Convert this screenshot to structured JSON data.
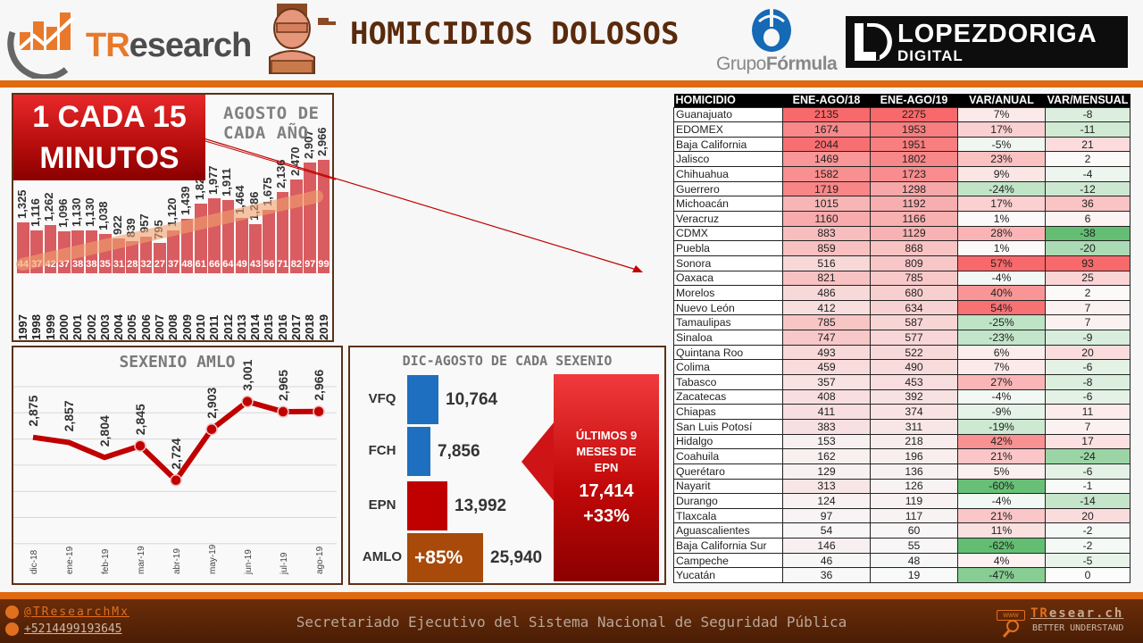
{
  "header": {
    "title": "HOMICIDIOS DOLOSOS",
    "logo_tresearch": {
      "t": "TR",
      "rest": "esearch"
    },
    "logo_grupoformula": {
      "pre": "Grupo",
      "bold": "Fórmula"
    },
    "logo_lopezdoriga": {
      "line1": "LOPEZDORIGA",
      "line2": "DIGITAL"
    }
  },
  "annual_panel": {
    "badge_line1": "1 CADA 15",
    "badge_line2": "MINUTOS",
    "title": "AGOSTO DE CADA AÑO"
  },
  "amlo_panel": {
    "title": "SEXENIO AMLO"
  },
  "sexenio_panel": {
    "title": "DIC-AGOSTO DE CADA SEXENIO",
    "callout": {
      "line1": "ÚLTIMOS 9",
      "line2": "MESES DE",
      "line3": "EPN",
      "value": "17,414",
      "pct": "+33%"
    },
    "amlo_pct": "+85%"
  },
  "chart_data": [
    {
      "type": "bar",
      "title": "AGOSTO DE CADA AÑO",
      "annotation": "1 CADA 15 MINUTOS",
      "categories": [
        "1997",
        "1998",
        "1999",
        "2000",
        "2001",
        "2002",
        "2003",
        "2004",
        "2005",
        "2006",
        "2007",
        "2008",
        "2009",
        "2010",
        "2011",
        "2012",
        "2013",
        "2014",
        "2015",
        "2016",
        "2017",
        "2018",
        "2019"
      ],
      "series": [
        {
          "name": "Homicidios (agosto)",
          "values": [
            1325,
            1116,
            1262,
            1096,
            1130,
            1130,
            1038,
            922,
            839,
            957,
            795,
            1120,
            1439,
            1822,
            1977,
            1911,
            1464,
            1286,
            1675,
            2136,
            2470,
            2907,
            2966
          ],
          "labels": [
            "1,325",
            "1,116",
            "1,262",
            "1,096",
            "1,130",
            "1,130",
            "1,038",
            "922",
            "839",
            "957",
            "795",
            "1,120",
            "1,439",
            "1,822",
            "1,977",
            "1,911",
            "1,464",
            "1,286",
            "1,675",
            "2,136",
            "2,470",
            "2,907",
            "2,966"
          ]
        },
        {
          "name": "Diario",
          "values": [
            44,
            37,
            42,
            37,
            38,
            38,
            35,
            31,
            28,
            32,
            27,
            37,
            48,
            61,
            66,
            64,
            49,
            43,
            56,
            71,
            82,
            97,
            99
          ]
        }
      ],
      "trendline": true
    },
    {
      "type": "line",
      "title": "SEXENIO AMLO",
      "categories": [
        "dic-18",
        "ene-19",
        "feb-19",
        "mar-19",
        "abr-19",
        "may-19",
        "jun-19",
        "jul-19",
        "ago-19"
      ],
      "values": [
        2875,
        2857,
        2804,
        2845,
        2724,
        2903,
        3001,
        2965,
        2966
      ],
      "labels": [
        "2,875",
        "2,857",
        "2,804",
        "2,845",
        "2,724",
        "2,903",
        "3,001",
        "2,965",
        "2,966"
      ],
      "grid": true
    },
    {
      "type": "bar",
      "orientation": "horizontal",
      "title": "DIC-AGOSTO DE CADA SEXENIO",
      "categories": [
        "VFQ",
        "FCH",
        "EPN",
        "AMLO"
      ],
      "values": [
        10764,
        7856,
        13992,
        25940
      ],
      "labels": [
        "10,764",
        "7,856",
        "13,992",
        "25,940"
      ],
      "colors": [
        "#1f6fc0",
        "#1f6fc0",
        "#c00000",
        "#a84a0a"
      ]
    },
    {
      "type": "table",
      "columns": [
        "HOMICIDIO",
        "ENE-AGO/18",
        "ENE-AGO/19",
        "VAR/ANUAL",
        "VAR/MENSUAL"
      ],
      "rows": [
        [
          "Guanajuato",
          "2135",
          "2275",
          "7%",
          "-8"
        ],
        [
          "EDOMEX",
          "1674",
          "1953",
          "17%",
          "-11"
        ],
        [
          "Baja California",
          "2044",
          "1951",
          "-5%",
          "21"
        ],
        [
          "Jalisco",
          "1469",
          "1802",
          "23%",
          "2"
        ],
        [
          "Chihuahua",
          "1582",
          "1723",
          "9%",
          "-4"
        ],
        [
          "Guerrero",
          "1719",
          "1298",
          "-24%",
          "-12"
        ],
        [
          "Michoacán",
          "1015",
          "1192",
          "17%",
          "36"
        ],
        [
          "Veracruz",
          "1160",
          "1166",
          "1%",
          "6"
        ],
        [
          "CDMX",
          "883",
          "1129",
          "28%",
          "-38"
        ],
        [
          "Puebla",
          "859",
          "868",
          "1%",
          "-20"
        ],
        [
          "Sonora",
          "516",
          "809",
          "57%",
          "93"
        ],
        [
          "Oaxaca",
          "821",
          "785",
          "-4%",
          "25"
        ],
        [
          "Morelos",
          "486",
          "680",
          "40%",
          "2"
        ],
        [
          "Nuevo León",
          "412",
          "634",
          "54%",
          "7"
        ],
        [
          "Tamaulipas",
          "785",
          "587",
          "-25%",
          "7"
        ],
        [
          "Sinaloa",
          "747",
          "577",
          "-23%",
          "-9"
        ],
        [
          "Quintana Roo",
          "493",
          "522",
          "6%",
          "20"
        ],
        [
          "Colima",
          "459",
          "490",
          "7%",
          "-6"
        ],
        [
          "Tabasco",
          "357",
          "453",
          "27%",
          "-8"
        ],
        [
          "Zacatecas",
          "408",
          "392",
          "-4%",
          "-6"
        ],
        [
          "Chiapas",
          "411",
          "374",
          "-9%",
          "11"
        ],
        [
          "San Luis Potosí",
          "383",
          "311",
          "-19%",
          "7"
        ],
        [
          "Hidalgo",
          "153",
          "218",
          "42%",
          "17"
        ],
        [
          "Coahuila",
          "162",
          "196",
          "21%",
          "-24"
        ],
        [
          "Querétaro",
          "129",
          "136",
          "5%",
          "-6"
        ],
        [
          "Nayarit",
          "313",
          "126",
          "-60%",
          "-1"
        ],
        [
          "Durango",
          "124",
          "119",
          "-4%",
          "-14"
        ],
        [
          "Tlaxcala",
          "97",
          "117",
          "21%",
          "20"
        ],
        [
          "Aguascalientes",
          "54",
          "60",
          "11%",
          "-2"
        ],
        [
          "Baja California Sur",
          "146",
          "55",
          "-62%",
          "-2"
        ],
        [
          "Campeche",
          "46",
          "48",
          "4%",
          "-5"
        ],
        [
          "Yucatán",
          "36",
          "19",
          "-47%",
          "0"
        ]
      ]
    }
  ],
  "footer": {
    "twitter": "@TResearchMx",
    "phone": "+5214499193645",
    "source": "Secretariado Ejecutivo del Sistema Nacional de Seguridad Pública",
    "brand_t": "TR",
    "brand_rest": "esear.ch",
    "tagline": "BETTER UNDERSTAND",
    "www": "www"
  },
  "colors": {
    "accent_orange": "#e06a10",
    "panel_border": "#5a3218",
    "bar_red": "#d95c60",
    "line_red": "#c00000",
    "title_brown": "#5a2a0c"
  }
}
